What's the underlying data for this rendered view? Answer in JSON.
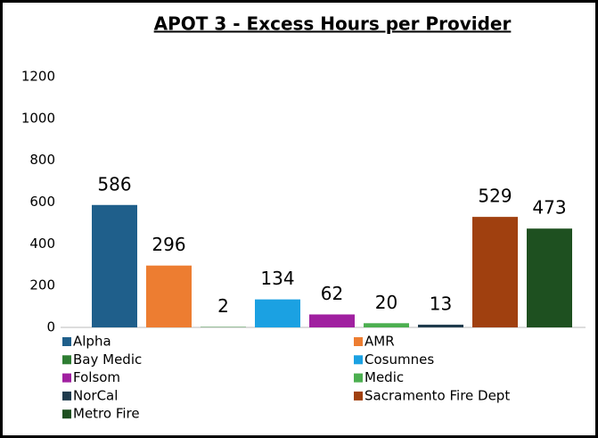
{
  "chart_data": {
    "type": "bar",
    "title": "APOT 3 - Excess Hours per Provider",
    "categories": [
      "Alpha",
      "AMR",
      "Bay Medic",
      "Cosumnes",
      "Folsom",
      "Medic",
      "NorCal",
      "Sacramento Fire Dept",
      "Metro Fire"
    ],
    "values": [
      586,
      296,
      2,
      134,
      62,
      20,
      13,
      529,
      473
    ],
    "colors": [
      "#1f5f8b",
      "#ed7d31",
      "#2e7d32",
      "#1ba1e2",
      "#a020a0",
      "#4caf50",
      "#1f3b4d",
      "#a0400f",
      "#1e5020"
    ],
    "ylim": [
      0,
      1200
    ],
    "yticks": [
      0,
      200,
      400,
      600,
      800,
      1000,
      1200
    ],
    "grid": false,
    "legend": "bottom"
  }
}
